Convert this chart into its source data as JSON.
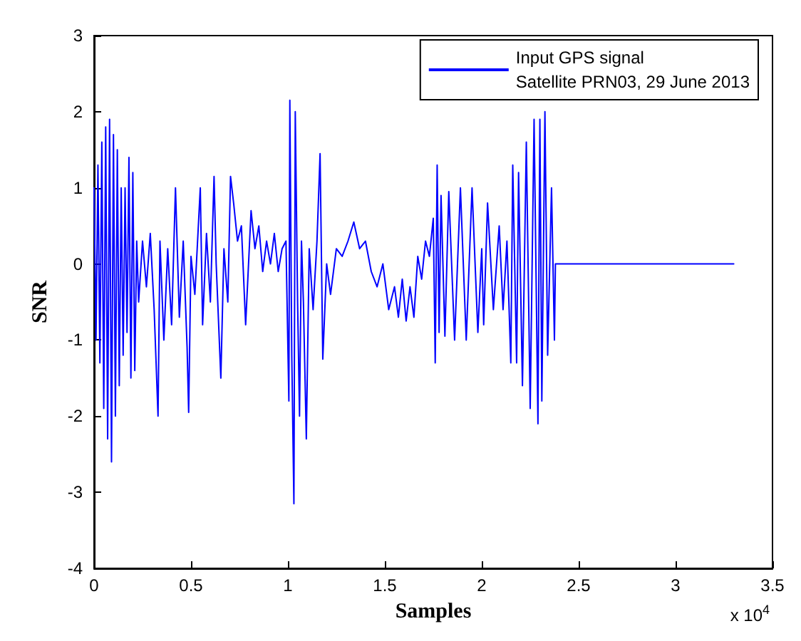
{
  "chart_data": {
    "type": "line",
    "xlabel": "Samples",
    "ylabel": "SNR",
    "xlim": [
      0,
      3.5
    ],
    "xticks": [
      0,
      0.5,
      1,
      1.5,
      2,
      2.5,
      3,
      3.5
    ],
    "ylim": [
      -4,
      3
    ],
    "yticks": [
      -4,
      -3,
      -2,
      -1,
      0,
      1,
      2,
      3
    ],
    "annotations": [
      "x 10$^{4}$"
    ],
    "grid": false,
    "legend": "top right",
    "marker": "none",
    "line_style": "solid",
    "series": [
      {
        "name": "Input GPS signal\nSatellite PRN03, 29 June 2013",
        "color": "#0000ff",
        "x": [
          0,
          0.01,
          0.02,
          0.03,
          0.04,
          0.05,
          0.06,
          0.07,
          0.08,
          0.09,
          0.1,
          0.11,
          0.12,
          0.13,
          0.14,
          0.15,
          0.16,
          0.17,
          0.18,
          0.19,
          0.2,
          0.21,
          0.22,
          0.23,
          0.25,
          0.27,
          0.29,
          0.31,
          0.33,
          0.34,
          0.36,
          0.38,
          0.4,
          0.42,
          0.44,
          0.46,
          0.48,
          0.488,
          0.5,
          0.52,
          0.548,
          0.56,
          0.58,
          0.6,
          0.619,
          0.63,
          0.654,
          0.67,
          0.69,
          0.704,
          0.72,
          0.74,
          0.76,
          0.782,
          0.81,
          0.83,
          0.85,
          0.87,
          0.89,
          0.91,
          0.93,
          0.95,
          0.97,
          0.99,
          1.005,
          1.01,
          1.02,
          1.031,
          1.038,
          1.05,
          1.06,
          1.07,
          1.08,
          1.095,
          1.11,
          1.13,
          1.15,
          1.166,
          1.18,
          1.2,
          1.22,
          1.25,
          1.28,
          1.31,
          1.34,
          1.37,
          1.4,
          1.43,
          1.46,
          1.49,
          1.52,
          1.55,
          1.57,
          1.59,
          1.61,
          1.63,
          1.65,
          1.67,
          1.69,
          1.71,
          1.73,
          1.75,
          1.76,
          1.77,
          1.78,
          1.79,
          1.81,
          1.83,
          1.86,
          1.89,
          1.92,
          1.95,
          1.98,
          2.0,
          2.01,
          2.03,
          2.06,
          2.09,
          2.11,
          2.13,
          2.15,
          2.16,
          2.18,
          2.19,
          2.21,
          2.23,
          2.25,
          2.27,
          2.29,
          2.3,
          2.31,
          2.326,
          2.34,
          2.36,
          2.375,
          2.38,
          3.3
        ],
        "values": [
          1.0,
          -1.0,
          1.3,
          -1.3,
          1.6,
          -1.9,
          1.8,
          -2.3,
          1.9,
          -2.6,
          1.7,
          -2.0,
          1.5,
          -1.6,
          1.0,
          -1.2,
          1.0,
          -0.9,
          1.4,
          -1.5,
          1.2,
          -1.4,
          0.3,
          -0.5,
          0.3,
          -0.3,
          0.4,
          -0.6,
          -2.0,
          0.3,
          -1.0,
          0.2,
          -0.8,
          1.0,
          -0.7,
          0.3,
          -1.1,
          -1.95,
          0.1,
          -0.4,
          1.0,
          -0.8,
          0.4,
          -0.5,
          1.15,
          0.0,
          -1.5,
          0.2,
          -0.5,
          1.15,
          0.8,
          0.3,
          0.5,
          -0.8,
          0.7,
          0.2,
          0.5,
          -0.1,
          0.3,
          0.0,
          0.4,
          -0.1,
          0.2,
          0.3,
          -1.8,
          2.15,
          -1.2,
          -3.15,
          2.0,
          -0.5,
          -2.0,
          0.3,
          -0.5,
          -2.3,
          0.2,
          -0.6,
          0.3,
          1.45,
          -1.25,
          0.0,
          -0.4,
          0.2,
          0.1,
          0.3,
          0.55,
          0.2,
          0.3,
          -0.1,
          -0.3,
          0.0,
          -0.6,
          -0.3,
          -0.7,
          -0.2,
          -0.75,
          -0.3,
          -0.7,
          0.1,
          -0.2,
          0.3,
          0.1,
          0.6,
          -1.3,
          1.3,
          -0.9,
          0.9,
          -0.95,
          0.95,
          -1.0,
          1.0,
          -1.0,
          1.0,
          -0.9,
          0.2,
          -0.8,
          0.8,
          -0.6,
          0.5,
          -0.6,
          0.3,
          -1.3,
          1.3,
          -1.3,
          1.2,
          -1.6,
          1.6,
          -1.9,
          1.9,
          -2.1,
          1.9,
          -1.8,
          2.0,
          -1.2,
          1.0,
          -1.0,
          0.0,
          0.0
        ]
      }
    ]
  }
}
